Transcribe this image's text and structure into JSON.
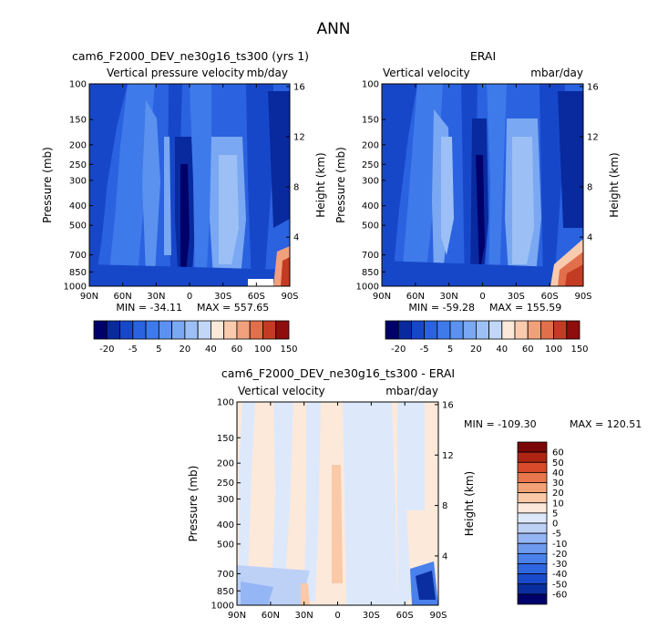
{
  "figure_title": "ANN",
  "lat_ticks": [
    "90N",
    "60N",
    "30N",
    "0",
    "30S",
    "60S",
    "90S"
  ],
  "pressure_ticks": [
    "100",
    "150",
    "200",
    "250",
    "300",
    "400",
    "500",
    "700",
    "850",
    "1000"
  ],
  "height_ticks": [
    "16",
    "12",
    "8",
    "4"
  ],
  "colors": {
    "top_scale": [
      "#00006b",
      "#082a9e",
      "#1747c9",
      "#2a62e0",
      "#3e7aea",
      "#5b92ef",
      "#7aa8f2",
      "#9cc0f5",
      "#c2d7f8",
      "#fbe8d8",
      "#f9cbae",
      "#f1a07c",
      "#e26f4c",
      "#c43b23",
      "#8f0d0d"
    ],
    "diff_scale": [
      "#00006b",
      "#0a2da0",
      "#1a4acc",
      "#2e66e2",
      "#4a80ec",
      "#6e9af0",
      "#95b6f4",
      "#bdd1f7",
      "#dde9fb",
      "#fde9da",
      "#f9c9a8",
      "#f3a276",
      "#e9764c",
      "#d84a2a",
      "#b02414",
      "#7a0606"
    ]
  },
  "chart_data": [
    {
      "type": "contour",
      "case_title": "cam6_F2000_DEV_ne30g16_ts300 (yrs 1)",
      "left_label": "Vertical pressure velocity",
      "right_label": "mb/day",
      "ylabel": "Pressure (mb)",
      "ylabel_right": "Height (km)",
      "x_ticks": [
        "90N",
        "60N",
        "30N",
        "0",
        "30S",
        "60S",
        "90S"
      ],
      "y_ticks": [
        100,
        150,
        200,
        250,
        300,
        400,
        500,
        700,
        850,
        1000
      ],
      "y_right_ticks": [
        16,
        12,
        8,
        4
      ],
      "xlim": [
        90,
        -90
      ],
      "ylim": [
        1000,
        100
      ],
      "yscale": "log",
      "min_label": "MIN = -34.11",
      "max_label": "MAX = 557.65",
      "levels": [
        "-20",
        "-5",
        "5",
        "20",
        "40",
        "60",
        "100",
        "150"
      ]
    },
    {
      "type": "contour",
      "case_title": "ERAI",
      "left_label": "Vertical velocity",
      "right_label": "mbar/day",
      "ylabel": "Pressure (mb)",
      "ylabel_right": "Height (km)",
      "x_ticks": [
        "90N",
        "60N",
        "30N",
        "0",
        "30S",
        "60S",
        "90S"
      ],
      "y_ticks": [
        100,
        150,
        200,
        250,
        300,
        400,
        500,
        700,
        850,
        1000
      ],
      "y_right_ticks": [
        16,
        12,
        8,
        4
      ],
      "xlim": [
        90,
        -90
      ],
      "ylim": [
        1000,
        100
      ],
      "yscale": "log",
      "min_label": "MIN = -59.28",
      "max_label": "MAX = 155.59",
      "levels": [
        "-20",
        "-5",
        "5",
        "20",
        "40",
        "60",
        "100",
        "150"
      ]
    },
    {
      "type": "contour",
      "case_title": "cam6_F2000_DEV_ne30g16_ts300 - ERAI",
      "left_label": "Vertical velocity",
      "right_label": "mbar/day",
      "ylabel": "Pressure (mb)",
      "ylabel_right": "Height (km)",
      "x_ticks": [
        "90N",
        "60N",
        "30N",
        "0",
        "30S",
        "60S",
        "90S"
      ],
      "y_ticks": [
        100,
        150,
        200,
        250,
        300,
        400,
        500,
        700,
        850,
        1000
      ],
      "y_right_ticks": [
        16,
        12,
        8,
        4
      ],
      "xlim": [
        90,
        -90
      ],
      "ylim": [
        1000,
        100
      ],
      "yscale": "log",
      "min_label": "MIN = -109.30",
      "max_label": "MAX = 120.51",
      "levels": [
        "60",
        "50",
        "40",
        "30",
        "20",
        "10",
        "5",
        "0",
        "-5",
        "-10",
        "-20",
        "-30",
        "-40",
        "-50",
        "-60"
      ]
    }
  ]
}
